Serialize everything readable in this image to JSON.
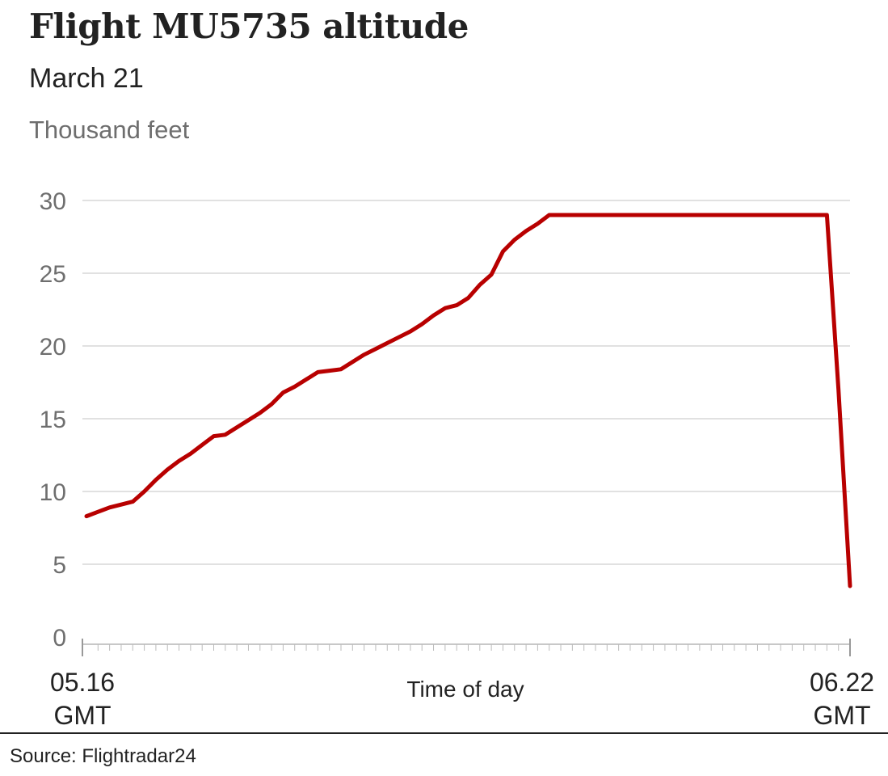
{
  "chart_data": {
    "type": "line",
    "title": "Flight MU5735 altitude",
    "subtitle": "March 21",
    "ylabel": "Thousand feet",
    "xlabel": "Time of day",
    "x_start_label": [
      "05.16",
      "GMT"
    ],
    "x_end_label": [
      "06.22",
      "GMT"
    ],
    "ylim": [
      0,
      30
    ],
    "yticks": [
      "0",
      "5",
      "10",
      "15",
      "20",
      "25",
      "30"
    ],
    "grid": true,
    "line_color": "#b80000",
    "series": [
      {
        "x": [
          "05.16",
          "05.17",
          "05.18",
          "05.19",
          "05.20",
          "05.21",
          "05.22",
          "05.23",
          "05.24",
          "05.25",
          "05.26",
          "05.27",
          "05.28",
          "05.29",
          "05.30",
          "05.31",
          "05.32",
          "05.33",
          "05.34",
          "05.35",
          "05.36",
          "05.37",
          "05.38",
          "05.39",
          "05.40",
          "05.41",
          "05.42",
          "05.43",
          "05.44",
          "05.45",
          "05.46",
          "05.47",
          "05.48",
          "05.49",
          "05.50",
          "05.51",
          "05.52",
          "05.53",
          "05.54",
          "05.55",
          "05.56",
          "05.57",
          "05.58",
          "05.59",
          "06.00",
          "06.01",
          "06.02",
          "06.03",
          "06.04",
          "06.05",
          "06.06",
          "06.07",
          "06.08",
          "06.09",
          "06.10",
          "06.11",
          "06.12",
          "06.13",
          "06.14",
          "06.15",
          "06.16",
          "06.17",
          "06.18",
          "06.19",
          "06.20",
          "06.21",
          "06.22"
        ],
        "values": [
          8.3,
          8.6,
          8.9,
          9.1,
          9.3,
          10.0,
          10.8,
          11.5,
          12.1,
          12.6,
          13.2,
          13.8,
          13.9,
          14.4,
          14.9,
          15.4,
          16.0,
          16.8,
          17.2,
          17.7,
          18.2,
          18.3,
          18.4,
          18.9,
          19.4,
          19.8,
          20.2,
          20.6,
          21.0,
          21.5,
          22.1,
          22.6,
          22.8,
          23.3,
          24.2,
          24.9,
          26.5,
          27.3,
          27.9,
          28.4,
          29.0,
          29.0,
          29.0,
          29.0,
          29.0,
          29.0,
          29.0,
          29.0,
          29.0,
          29.0,
          29.0,
          29.0,
          29.0,
          29.0,
          29.0,
          29.0,
          29.0,
          29.0,
          29.0,
          29.0,
          29.0,
          29.0,
          29.0,
          29.0,
          29.0,
          17.0,
          3.5
        ]
      }
    ]
  },
  "source": "Source: Flightradar24"
}
